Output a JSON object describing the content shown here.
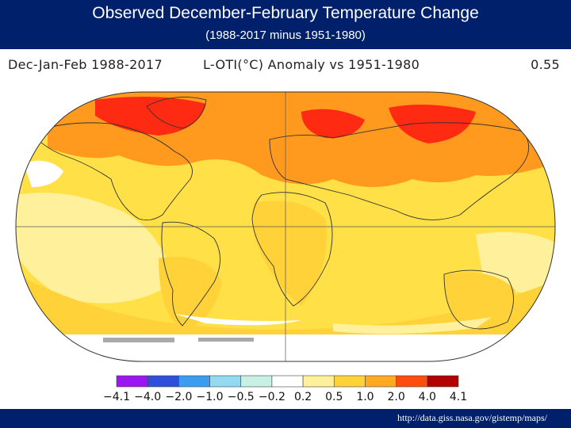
{
  "slide": {
    "title": "Observed December-February Temperature Change",
    "subtitle": "(1988-2017 minus 1951-1980)",
    "source_url": "http://data.giss.nasa.gov/gistemp/maps/"
  },
  "map": {
    "period_label": "Dec-Jan-Feb 1988-2017",
    "anomaly_label": "L-OTI(°C) Anomaly vs 1951-1980",
    "global_mean": "0.55",
    "projection": "Robinson (approx.)"
  },
  "legend": {
    "labels": [
      "−4.1",
      "−4.0",
      "−2.0",
      "−1.0",
      "−0.5",
      "−0.2",
      "0.2",
      "0.5",
      "1.0",
      "2.0",
      "4.0",
      "4.1"
    ],
    "colors": [
      "#9a17f0",
      "#2f4fd9",
      "#3c9cf0",
      "#92d9f2",
      "#c9f0e4",
      "#ffffff",
      "#fff19c",
      "#ffd23a",
      "#ffaa23",
      "#ff4d0f",
      "#b20000"
    ]
  }
}
